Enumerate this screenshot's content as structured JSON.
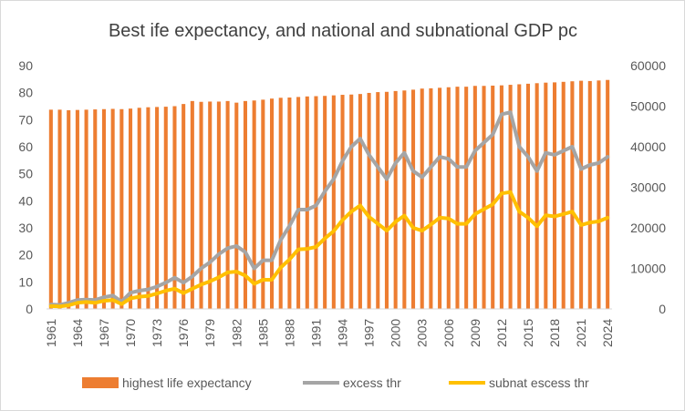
{
  "chart_data": {
    "type": "bar+line",
    "title": "Best ife expectancy, and national and subnational GDP pc",
    "years": [
      1961,
      1962,
      1963,
      1964,
      1965,
      1966,
      1967,
      1968,
      1969,
      1970,
      1971,
      1972,
      1973,
      1974,
      1975,
      1976,
      1977,
      1978,
      1979,
      1980,
      1981,
      1982,
      1983,
      1984,
      1985,
      1986,
      1987,
      1988,
      1989,
      1990,
      1991,
      1992,
      1993,
      1994,
      1995,
      1996,
      1997,
      1998,
      1999,
      2000,
      2001,
      2002,
      2003,
      2004,
      2005,
      2006,
      2007,
      2008,
      2009,
      2010,
      2011,
      2012,
      2013,
      2014,
      2015,
      2016,
      2017,
      2018,
      2019,
      2020,
      2021,
      2022,
      2023,
      2024
    ],
    "x_tick_labels": [
      "1961",
      "1964",
      "1967",
      "1970",
      "1973",
      "1976",
      "1979",
      "1982",
      "1985",
      "1988",
      "1991",
      "1994",
      "1997",
      "2000",
      "2003",
      "2006",
      "2009",
      "2012",
      "2015",
      "2018",
      "2021",
      "2024"
    ],
    "left_axis": {
      "min": 0,
      "max": 90,
      "ticks": [
        "0",
        "10",
        "20",
        "30",
        "40",
        "50",
        "60",
        "70",
        "80",
        "90"
      ]
    },
    "right_axis": {
      "min": 0,
      "max": 60000,
      "ticks": [
        "0",
        "10000",
        "20000",
        "30000",
        "40000",
        "50000",
        "60000"
      ]
    },
    "series": [
      {
        "name": "highest life expectancy",
        "kind": "bar",
        "axis": "left",
        "color": "#ED7D31",
        "values": [
          73.7,
          73.7,
          73.5,
          73.6,
          73.7,
          73.8,
          73.9,
          74.0,
          73.9,
          74.1,
          74.4,
          74.6,
          74.7,
          74.8,
          75.0,
          75.8,
          76.9,
          76.6,
          76.7,
          76.7,
          76.9,
          76.3,
          76.9,
          77.1,
          77.4,
          77.8,
          78.1,
          78.2,
          78.4,
          78.6,
          78.7,
          78.8,
          79.0,
          79.2,
          79.3,
          79.5,
          79.9,
          80.2,
          80.3,
          80.6,
          80.8,
          81.1,
          81.5,
          81.6,
          81.8,
          82.0,
          82.2,
          82.2,
          82.5,
          82.5,
          82.6,
          82.7,
          82.9,
          83.1,
          83.3,
          83.5,
          83.7,
          83.8,
          84.0,
          84.2,
          84.4,
          84.3,
          84.5,
          84.7
        ]
      },
      {
        "name": "excess thr",
        "kind": "line",
        "axis": "right",
        "color": "#A5A5A5",
        "values": [
          1100,
          1000,
          1500,
          2200,
          2300,
          2200,
          2900,
          3300,
          1800,
          4000,
          4500,
          4800,
          5500,
          6500,
          7700,
          6500,
          8000,
          10000,
          11500,
          13500,
          15000,
          15500,
          14000,
          10000,
          12000,
          12000,
          17000,
          20500,
          24500,
          24500,
          25500,
          29000,
          32000,
          36500,
          40000,
          42000,
          38000,
          35000,
          32000,
          36000,
          38500,
          34000,
          32500,
          35000,
          37500,
          37000,
          35000,
          35000,
          39000,
          41000,
          43000,
          48000,
          48500,
          40000,
          37500,
          34000,
          38500,
          38000,
          39000,
          40000,
          34500,
          35500,
          36000,
          37500
        ]
      },
      {
        "name": "subnat escess thr",
        "kind": "line",
        "axis": "right",
        "color": "#FFC000",
        "values": [
          700,
          600,
          900,
          1500,
          1700,
          1500,
          2000,
          2200,
          1200,
          2600,
          3000,
          3200,
          3800,
          4500,
          5000,
          3900,
          5000,
          6000,
          6800,
          7800,
          9000,
          9200,
          8200,
          6200,
          7200,
          7200,
          10200,
          12200,
          14700,
          14800,
          15300,
          17400,
          19200,
          21900,
          24000,
          25500,
          22700,
          21000,
          19300,
          21500,
          23000,
          20000,
          19300,
          20800,
          22500,
          22300,
          21000,
          21000,
          23400,
          24600,
          25800,
          28500,
          28800,
          24000,
          22500,
          20400,
          23100,
          22800,
          23400,
          24000,
          20700,
          21300,
          21600,
          22500
        ]
      }
    ],
    "legend_position": "bottom",
    "gridlines": false
  }
}
